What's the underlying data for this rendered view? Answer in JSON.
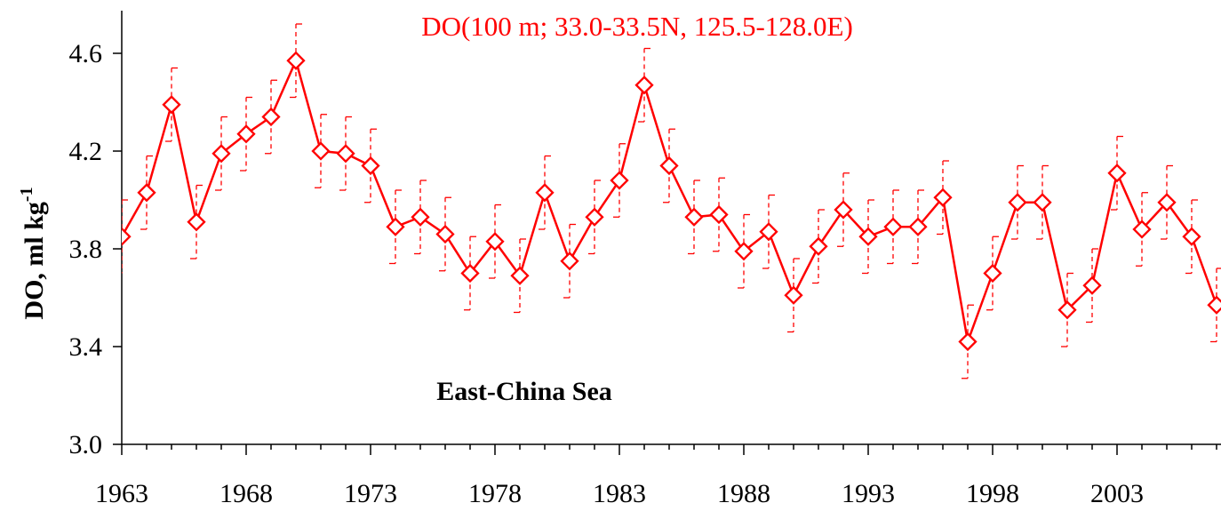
{
  "chart_data": {
    "type": "line",
    "title": "DO(100 m; 33.0-33.5N, 125.5-128.0E)",
    "ylabel": "DO, ml kg",
    "ylabel_sup": "-1",
    "annotation": "East-China Sea",
    "xlim": [
      1963,
      2007.8
    ],
    "ylim": [
      3.0,
      4.75
    ],
    "xticks": [
      1963,
      1968,
      1973,
      1978,
      1983,
      1988,
      1993,
      1998,
      2003
    ],
    "yticks": [
      3.0,
      3.4,
      3.8,
      4.2,
      4.6
    ],
    "ytick_labels": [
      "3.0",
      "3.4",
      "3.8",
      "4.2",
      "4.6"
    ],
    "colors": {
      "series": "#ff0000",
      "axes": "#000000"
    },
    "series": [
      {
        "marker": "diamond-open",
        "error_bars": 0.15,
        "x": [
          1963,
          1964,
          1965,
          1966,
          1967,
          1968,
          1969,
          1970,
          1971,
          1972,
          1973,
          1974,
          1975,
          1976,
          1977,
          1978,
          1979,
          1980,
          1981,
          1982,
          1983,
          1984,
          1985,
          1986,
          1987,
          1988,
          1989,
          1990,
          1991,
          1992,
          1993,
          1994,
          1995,
          1996,
          1997,
          1998,
          1999,
          2000,
          2001,
          2002,
          2003,
          2004,
          2005,
          2006,
          2007
        ],
        "values": [
          3.85,
          4.03,
          4.39,
          3.91,
          4.19,
          4.27,
          4.34,
          4.57,
          4.2,
          4.19,
          4.14,
          3.89,
          3.93,
          3.86,
          3.7,
          3.83,
          3.69,
          4.03,
          3.75,
          3.93,
          4.08,
          4.47,
          4.14,
          3.93,
          3.94,
          3.79,
          3.87,
          3.61,
          3.81,
          3.96,
          3.85,
          3.89,
          3.89,
          4.01,
          3.42,
          3.7,
          3.99,
          3.99,
          3.55,
          3.65,
          4.11,
          3.88,
          3.99,
          3.85,
          3.57
        ]
      }
    ]
  }
}
